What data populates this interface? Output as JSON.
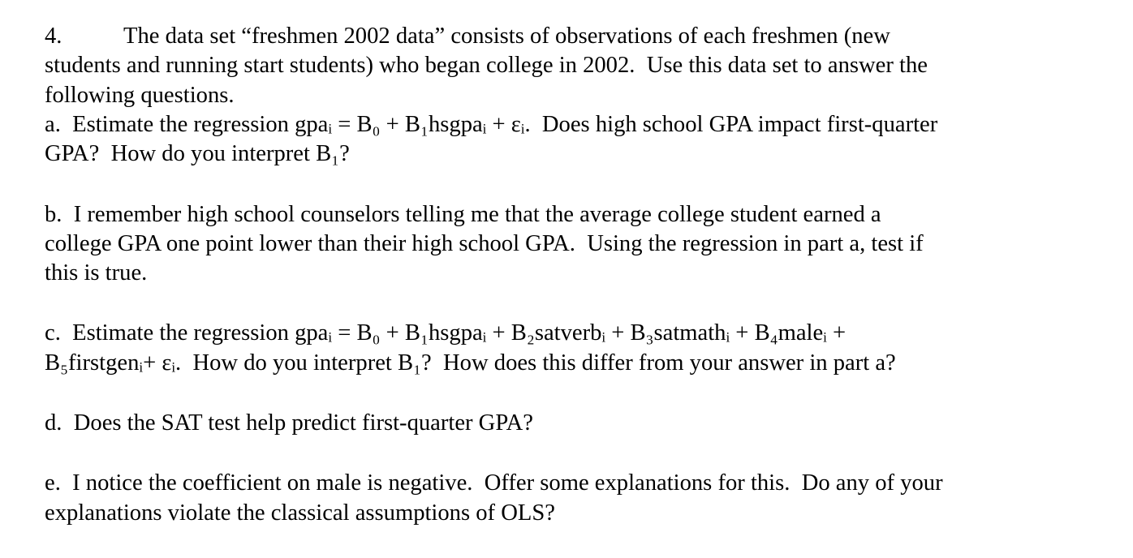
{
  "question": {
    "number": "4.",
    "intro": [
      "The data set “freshmen 2002 data” consists of observations of each freshmen (new",
      "students and running start students) who began college in 2002.  Use this data set to answer the",
      "following questions."
    ],
    "part_a": [
      "a.  Estimate the regression gpaᵢ = B₀ + B₁hsgpaᵢ + εᵢ.  Does high school GPA impact first-quarter",
      "GPA?  How do you interpret B₁?"
    ],
    "part_b": [
      "b.  I remember high school counselors telling me that the average college student earned a",
      "college GPA one point lower than their high school GPA.  Using the regression in part a, test if",
      "this is true."
    ],
    "part_c": [
      "c.  Estimate the regression gpaᵢ = B₀ + B₁hsgpaᵢ + B₂satverbᵢ + B₃satmathᵢ + B₄maleᵢ +",
      "B₅firstgenᵢ+ εᵢ.  How do you interpret B₁?  How does this differ from your answer in part a?"
    ],
    "part_d": [
      "d.  Does the SAT test help predict first-quarter GPA?"
    ],
    "part_e": [
      "e.  I notice the coefficient on male is negative.  Offer some explanations for this.  Do any of your",
      "explanations violate the classical assumptions of OLS?"
    ]
  }
}
